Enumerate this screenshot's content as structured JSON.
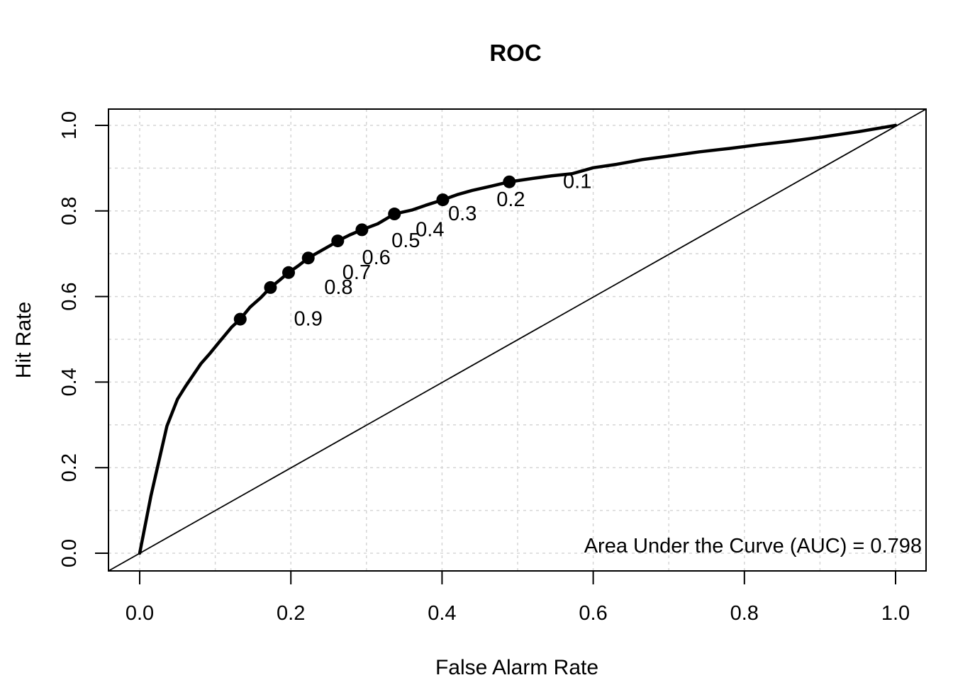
{
  "figure": {
    "background": "#ffffff"
  },
  "colors": {
    "line": "#000000",
    "grid": "#d5d5d5",
    "background": "#ffffff"
  },
  "chart_data": {
    "type": "line",
    "title": "ROC",
    "xlabel": "False Alarm Rate",
    "ylabel": "Hit Rate",
    "xlim": [
      0,
      1
    ],
    "ylim": [
      0,
      1
    ],
    "x_ticks": {
      "values": [
        0,
        0.2,
        0.4,
        0.6,
        0.8,
        1.0
      ],
      "labels": [
        "0.0",
        "0.2",
        "0.4",
        "0.6",
        "0.8",
        "1.0"
      ]
    },
    "y_ticks": {
      "values": [
        0,
        0.2,
        0.4,
        0.6,
        0.8,
        1.0
      ],
      "labels": [
        "0.0",
        "0.2",
        "0.4",
        "0.6",
        "0.8",
        "1.0"
      ]
    },
    "grid": {
      "on": true,
      "step": 0.1,
      "line_style": "dashed",
      "color": "#d5d5d5"
    },
    "reference_line": {
      "type": "diagonal",
      "from": [
        0,
        0
      ],
      "to": [
        1,
        1
      ]
    },
    "series": [
      {
        "name": "ROC curve",
        "points": [
          [
            0.0,
            0.0
          ],
          [
            0.015,
            0.135
          ],
          [
            0.036,
            0.297
          ],
          [
            0.05,
            0.36
          ],
          [
            0.061,
            0.391
          ],
          [
            0.081,
            0.443
          ],
          [
            0.092,
            0.465
          ],
          [
            0.105,
            0.493
          ],
          [
            0.122,
            0.529
          ],
          [
            0.133,
            0.547
          ],
          [
            0.146,
            0.575
          ],
          [
            0.16,
            0.597
          ],
          [
            0.173,
            0.621
          ],
          [
            0.185,
            0.638
          ],
          [
            0.197,
            0.656
          ],
          [
            0.21,
            0.672
          ],
          [
            0.223,
            0.69
          ],
          [
            0.24,
            0.707
          ],
          [
            0.252,
            0.719
          ],
          [
            0.262,
            0.73
          ],
          [
            0.278,
            0.744
          ],
          [
            0.294,
            0.756
          ],
          [
            0.315,
            0.77
          ],
          [
            0.337,
            0.793
          ],
          [
            0.36,
            0.802
          ],
          [
            0.378,
            0.813
          ],
          [
            0.401,
            0.826
          ],
          [
            0.42,
            0.838
          ],
          [
            0.44,
            0.848
          ],
          [
            0.465,
            0.858
          ],
          [
            0.489,
            0.868
          ],
          [
            0.52,
            0.876
          ],
          [
            0.545,
            0.882
          ],
          [
            0.572,
            0.887
          ],
          [
            0.6,
            0.901
          ],
          [
            0.631,
            0.909
          ],
          [
            0.665,
            0.92
          ],
          [
            0.699,
            0.928
          ],
          [
            0.74,
            0.938
          ],
          [
            0.78,
            0.946
          ],
          [
            0.82,
            0.955
          ],
          [
            0.86,
            0.963
          ],
          [
            0.9,
            0.972
          ],
          [
            0.95,
            0.985
          ],
          [
            1.0,
            1.0
          ]
        ]
      }
    ],
    "threshold_points": [
      {
        "label": "0.9",
        "x": 0.133,
        "y": 0.547
      },
      {
        "label": "0.8",
        "x": 0.173,
        "y": 0.621
      },
      {
        "label": "0.7",
        "x": 0.197,
        "y": 0.656
      },
      {
        "label": "0.6",
        "x": 0.223,
        "y": 0.69
      },
      {
        "label": "0.5",
        "x": 0.262,
        "y": 0.73
      },
      {
        "label": "0.4",
        "x": 0.294,
        "y": 0.756
      },
      {
        "label": "0.3",
        "x": 0.337,
        "y": 0.793
      },
      {
        "label": "0.2",
        "x": 0.401,
        "y": 0.826
      },
      {
        "label": "0.1",
        "x": 0.489,
        "y": 0.868
      }
    ],
    "annotation": {
      "text": "Area Under the Curve (AUC) = 0.798",
      "auc": 0.798,
      "position": "bottom-right"
    }
  }
}
